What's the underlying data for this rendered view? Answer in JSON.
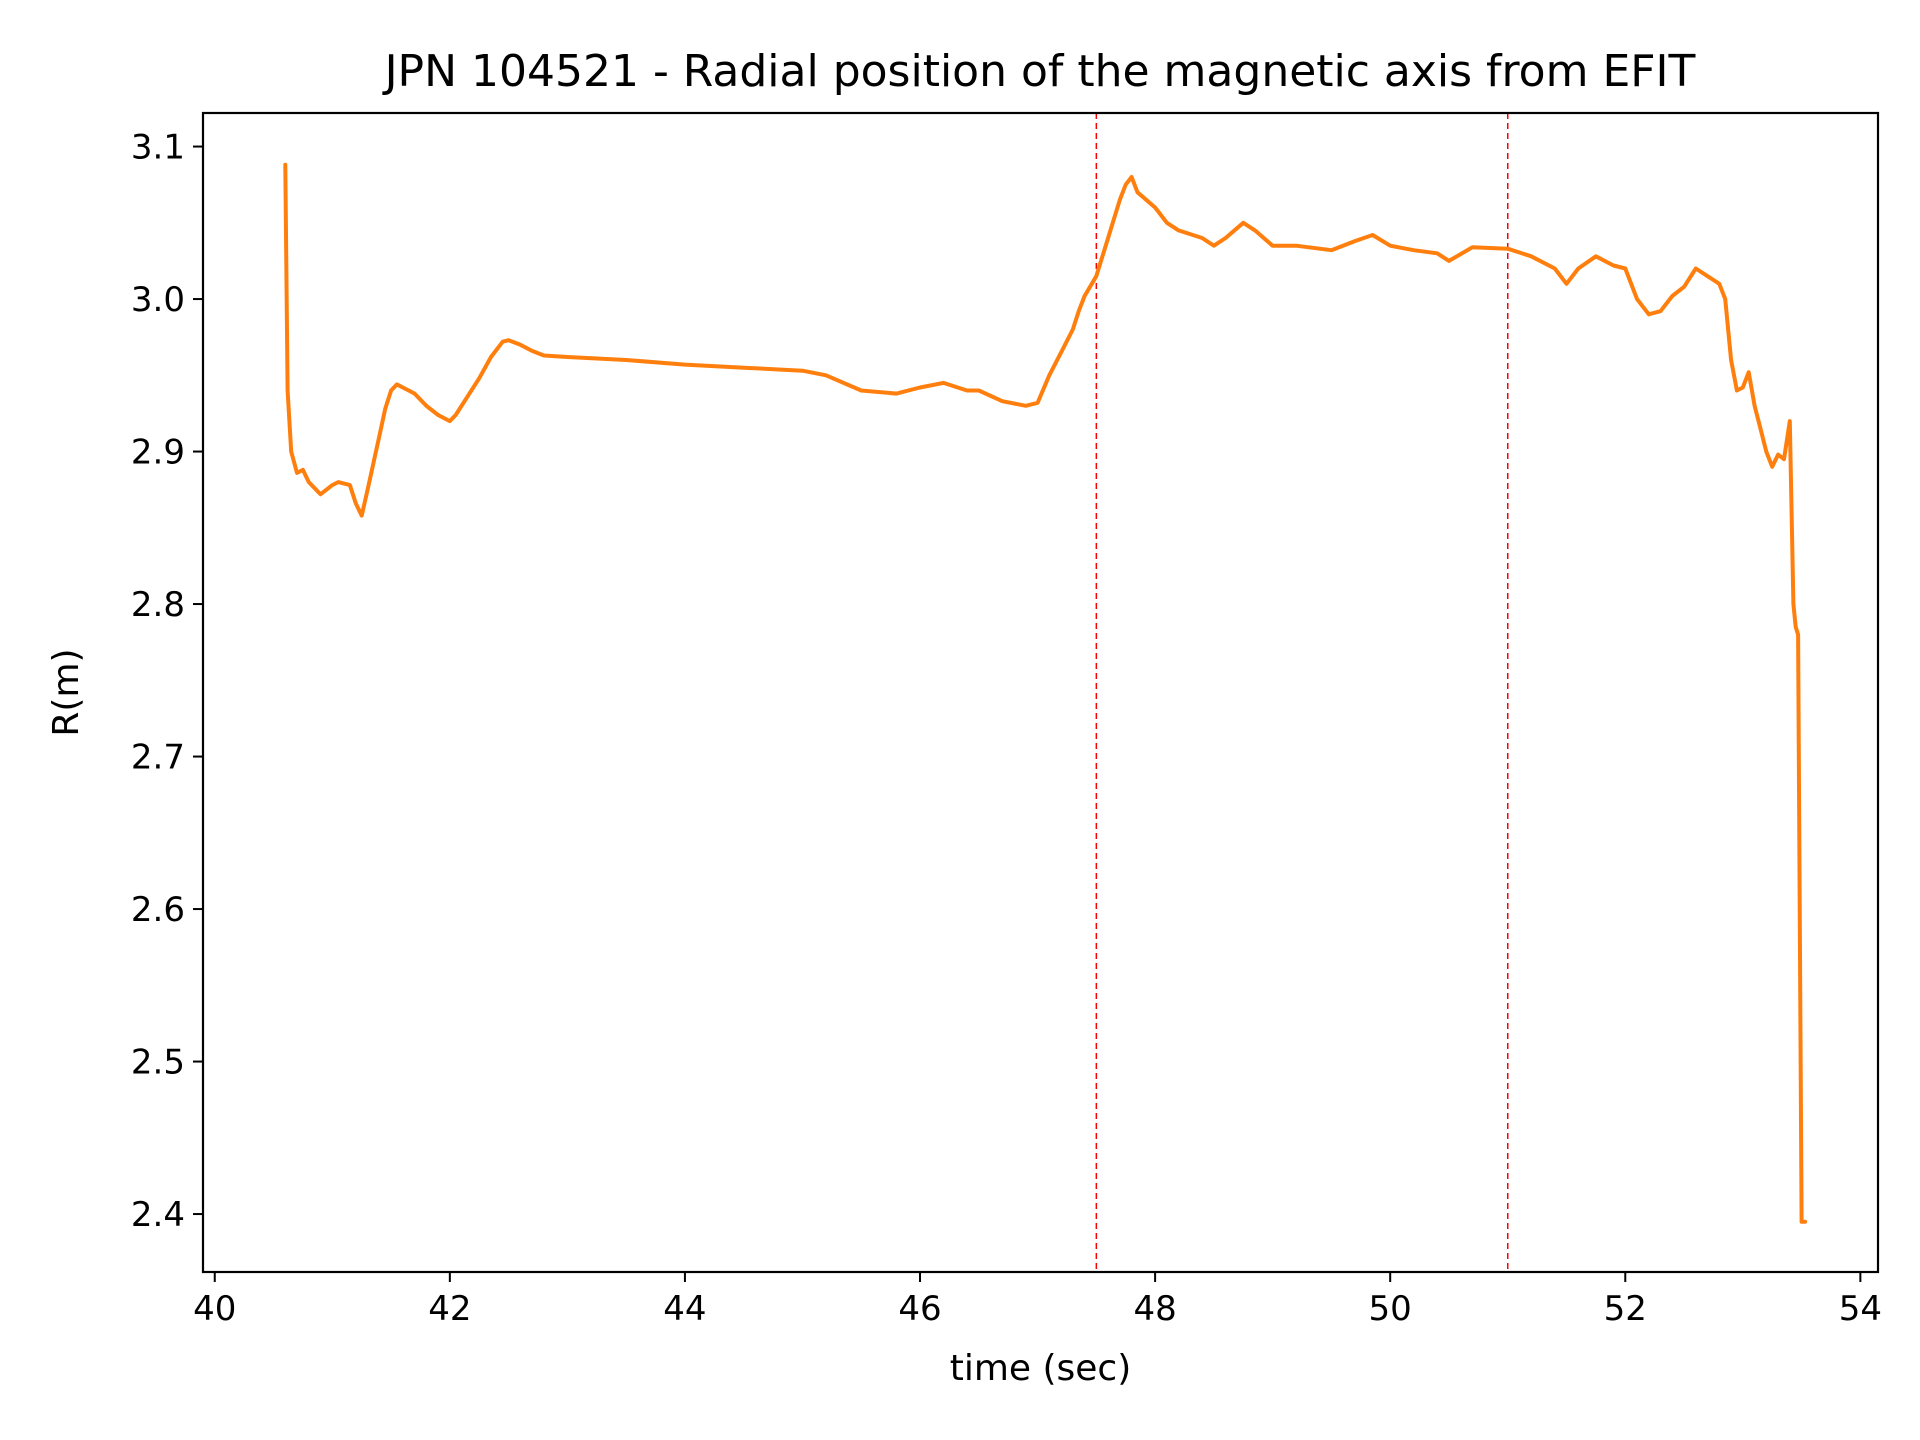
{
  "chart_data": {
    "type": "line",
    "title": "JPN 104521 - Radial position of the magnetic axis from EFIT",
    "xlabel": "time (sec)",
    "ylabel": "R(m)",
    "xlim": [
      39.9,
      54.15
    ],
    "ylim": [
      2.362,
      3.122
    ],
    "x_ticks": [
      40,
      42,
      44,
      46,
      48,
      50,
      52,
      54
    ],
    "x_tick_labels": [
      "40",
      "42",
      "44",
      "46",
      "48",
      "50",
      "52",
      "54"
    ],
    "y_ticks": [
      2.4,
      2.5,
      2.6,
      2.7,
      2.8,
      2.9,
      3.0,
      3.1
    ],
    "y_tick_labels": [
      "2.4",
      "2.5",
      "2.6",
      "2.7",
      "2.8",
      "2.9",
      "3.0",
      "3.1"
    ],
    "grid": false,
    "legend": "none",
    "vertical_markers": [
      {
        "x": 47.5,
        "color": "#ff0000",
        "style": "dashed"
      },
      {
        "x": 51.0,
        "color": "#ff0000",
        "style": "dashed"
      }
    ],
    "series": [
      {
        "color": "#ff7f0e",
        "x": [
          40.6,
          40.62,
          40.65,
          40.7,
          40.75,
          40.8,
          40.9,
          41.0,
          41.05,
          41.15,
          41.2,
          41.25,
          41.3,
          41.4,
          41.45,
          41.5,
          41.55,
          41.6,
          41.65,
          41.7,
          41.8,
          41.9,
          42.0,
          42.05,
          42.15,
          42.25,
          42.35,
          42.45,
          42.5,
          42.6,
          42.7,
          42.8,
          43.0,
          43.5,
          44.0,
          44.5,
          45.0,
          45.2,
          45.5,
          45.8,
          46.0,
          46.2,
          46.4,
          46.5,
          46.7,
          46.9,
          47.0,
          47.1,
          47.2,
          47.3,
          47.35,
          47.4,
          47.5,
          47.6,
          47.7,
          47.75,
          47.8,
          47.85,
          48.0,
          48.1,
          48.2,
          48.4,
          48.5,
          48.6,
          48.75,
          48.85,
          49.0,
          49.2,
          49.5,
          49.7,
          49.85,
          50.0,
          50.2,
          50.4,
          50.5,
          50.7,
          51.0,
          51.2,
          51.4,
          51.5,
          51.6,
          51.75,
          51.9,
          52.0,
          52.1,
          52.2,
          52.3,
          52.4,
          52.5,
          52.6,
          52.7,
          52.8,
          52.85,
          52.9,
          52.95,
          53.0,
          53.05,
          53.1,
          53.15,
          53.2,
          53.25,
          53.3,
          53.35,
          53.4,
          53.43,
          53.45,
          53.47,
          53.5,
          53.53
        ],
        "y": [
          3.088,
          2.94,
          2.9,
          2.886,
          2.888,
          2.88,
          2.872,
          2.878,
          2.88,
          2.878,
          2.866,
          2.858,
          2.875,
          2.91,
          2.928,
          2.94,
          2.944,
          2.942,
          2.94,
          2.938,
          2.93,
          2.924,
          2.92,
          2.924,
          2.936,
          2.948,
          2.962,
          2.972,
          2.973,
          2.97,
          2.966,
          2.963,
          2.962,
          2.96,
          2.957,
          2.955,
          2.953,
          2.95,
          2.94,
          2.938,
          2.942,
          2.945,
          2.94,
          2.94,
          2.933,
          2.93,
          2.932,
          2.95,
          2.965,
          2.98,
          2.992,
          3.002,
          3.015,
          3.04,
          3.065,
          3.075,
          3.08,
          3.07,
          3.06,
          3.05,
          3.045,
          3.04,
          3.035,
          3.04,
          3.05,
          3.045,
          3.035,
          3.035,
          3.032,
          3.038,
          3.042,
          3.035,
          3.032,
          3.03,
          3.025,
          3.034,
          3.033,
          3.028,
          3.02,
          3.01,
          3.02,
          3.028,
          3.022,
          3.02,
          3.0,
          2.99,
          2.992,
          3.002,
          3.008,
          3.02,
          3.015,
          3.01,
          3.0,
          2.96,
          2.94,
          2.942,
          2.952,
          2.93,
          2.915,
          2.9,
          2.89,
          2.898,
          2.895,
          2.92,
          2.8,
          2.785,
          2.78,
          2.395,
          2.395
        ]
      }
    ]
  }
}
